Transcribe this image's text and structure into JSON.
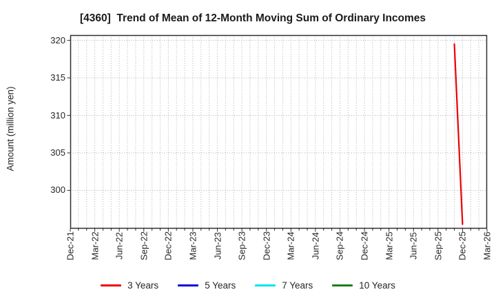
{
  "chart_data": {
    "type": "line",
    "title": "[4360]  Trend of Mean of 12-Month Moving Sum of Ordinary Incomes",
    "ylabel": "Amount (million yen)",
    "x_tick_labels": [
      "Dec-21",
      "Mar-22",
      "Jun-22",
      "Sep-22",
      "Dec-22",
      "Mar-23",
      "Jun-23",
      "Sep-23",
      "Dec-23",
      "Mar-24",
      "Jun-24",
      "Sep-24",
      "Dec-24",
      "Mar-25",
      "Jun-25",
      "Sep-25",
      "Dec-25",
      "Mar-26"
    ],
    "x_months_per_tick": 3,
    "x_total_months": 51,
    "yticks": [
      300,
      305,
      310,
      315,
      320
    ],
    "ylim": [
      294.9,
      320.7
    ],
    "grid": "dotted",
    "legend_position": "bottom-center",
    "series": [
      {
        "name": "3 Years",
        "color": "#ee0000",
        "points": [
          {
            "month_index": 47,
            "x_label": "Nov-25",
            "value": 319.5
          },
          {
            "month_index": 48,
            "x_label": "Dec-25",
            "value": 295.5
          }
        ]
      },
      {
        "name": "5 Years",
        "color": "#0000dd",
        "points": []
      },
      {
        "name": "7 Years",
        "color": "#00e5e5",
        "points": []
      },
      {
        "name": "10 Years",
        "color": "#1a7d1a",
        "points": []
      }
    ],
    "colors": {
      "plot_border": "#2e2e2e",
      "gridline": "#ababab",
      "tick": "#2e2e2e",
      "title_text": "#1a1a1a",
      "tick_text": "#262626",
      "background": "#ffffff"
    }
  }
}
